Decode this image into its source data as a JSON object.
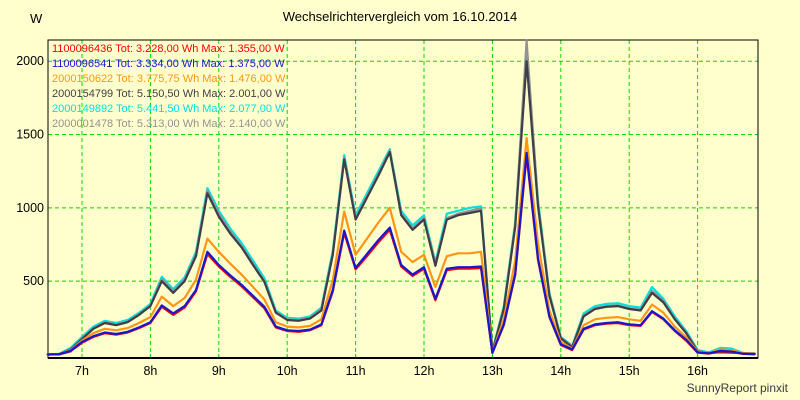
{
  "page": {
    "background": "#FFFFCE",
    "footer": "SunnyReport pinxit"
  },
  "chart_data": {
    "type": "line",
    "title": "Wechselrichtervergleich vom 16.10.2014",
    "ylabel": "W",
    "xlabel": "",
    "grid": true,
    "grid_color": "#00DB00",
    "frame_color": "#000000",
    "legend_position": "top-left",
    "ylim": [
      0,
      2185
    ],
    "y_ticks": [
      500,
      1000,
      1500,
      2000
    ],
    "y_tick_labels": [
      "500",
      "1000",
      "1500",
      "2000"
    ],
    "x_tick_hours": [
      7,
      8,
      9,
      10,
      11,
      12,
      13,
      14,
      15,
      16
    ],
    "x_tick_labels": [
      "7h",
      "8h",
      "9h",
      "10h",
      "11h",
      "12h",
      "13h",
      "14h",
      "15h",
      "16h"
    ],
    "x": [
      "06:30",
      "06:40",
      "06:50",
      "07:00",
      "07:10",
      "07:20",
      "07:30",
      "07:40",
      "07:50",
      "08:00",
      "08:10",
      "08:20",
      "08:30",
      "08:40",
      "08:50",
      "09:00",
      "09:10",
      "09:20",
      "09:30",
      "09:40",
      "09:50",
      "10:00",
      "10:10",
      "10:20",
      "10:30",
      "10:40",
      "10:50",
      "11:00",
      "11:10",
      "11:20",
      "11:30",
      "11:40",
      "11:50",
      "12:00",
      "12:10",
      "12:20",
      "12:30",
      "12:40",
      "12:50",
      "13:00",
      "13:10",
      "13:20",
      "13:30",
      "13:40",
      "13:50",
      "14:00",
      "14:10",
      "14:20",
      "14:30",
      "14:40",
      "14:50",
      "15:00",
      "15:10",
      "15:20",
      "15:30",
      "15:40",
      "15:50",
      "16:00",
      "16:10",
      "16:20",
      "16:30",
      "16:40",
      "16:50"
    ],
    "series": [
      {
        "name": "1100096436",
        "label": "1100096436 Tot: 3.228,00 Wh Max: 1.355,00 W",
        "total_wh": "3.228,00",
        "max_w": "1.355,00",
        "color": "#FF0000",
        "values": [
          0,
          2,
          22,
          80,
          120,
          145,
          135,
          150,
          180,
          215,
          325,
          270,
          320,
          430,
          685,
          600,
          530,
          465,
          390,
          315,
          185,
          160,
          155,
          165,
          200,
          430,
          830,
          580,
          670,
          765,
          850,
          600,
          535,
          585,
          370,
          575,
          585,
          585,
          590,
          10,
          200,
          540,
          1355,
          645,
          255,
          65,
          30,
          170,
          200,
          210,
          215,
          200,
          195,
          290,
          240,
          160,
          95,
          12,
          6,
          22,
          18,
          4,
          2
        ]
      },
      {
        "name": "1100096541",
        "label": "1100096541 Tot: 3.334,00 Wh Max: 1.375,00 W",
        "total_wh": "3.334,00",
        "max_w": "1.375,00",
        "color": "#1717CD",
        "values": [
          0,
          2,
          25,
          85,
          125,
          150,
          140,
          155,
          185,
          220,
          335,
          280,
          330,
          440,
          700,
          610,
          540,
          475,
          400,
          325,
          190,
          165,
          160,
          170,
          205,
          440,
          845,
          590,
          685,
          780,
          865,
          610,
          545,
          595,
          380,
          585,
          595,
          595,
          600,
          12,
          205,
          550,
          1375,
          655,
          260,
          70,
          35,
          175,
          205,
          215,
          220,
          205,
          200,
          295,
          245,
          165,
          100,
          15,
          8,
          25,
          20,
          5,
          2
        ]
      },
      {
        "name": "2000150622",
        "label": "2000150622 Tot: 3.775,75 Wh Max: 1.476,00 W",
        "total_wh": "3.775,75",
        "max_w": "1.476,00",
        "color": "#FF9415",
        "values": [
          0,
          3,
          30,
          95,
          145,
          175,
          165,
          180,
          215,
          255,
          395,
          330,
          385,
          510,
          790,
          700,
          620,
          545,
          460,
          375,
          220,
          190,
          185,
          195,
          240,
          510,
          975,
          680,
          790,
          900,
          1000,
          700,
          630,
          680,
          460,
          670,
          690,
          690,
          700,
          15,
          240,
          640,
          1476,
          760,
          300,
          85,
          40,
          200,
          240,
          250,
          255,
          240,
          230,
          340,
          285,
          190,
          115,
          20,
          10,
          35,
          30,
          8,
          3
        ]
      },
      {
        "name": "2000154799",
        "label": "2000154799 Tot: 5.150,50 Wh Max: 2.001,00 W",
        "total_wh": "5.150,50",
        "max_w": "2.001,00",
        "color": "#3E3E46",
        "values": [
          0,
          3,
          35,
          105,
          175,
          215,
          200,
          220,
          270,
          330,
          500,
          420,
          500,
          670,
          1100,
          940,
          825,
          730,
          610,
          495,
          285,
          235,
          230,
          245,
          300,
          680,
          1330,
          920,
          1070,
          1220,
          1380,
          950,
          850,
          920,
          605,
          920,
          950,
          965,
          980,
          18,
          310,
          870,
          2001,
          1010,
          400,
          110,
          50,
          260,
          310,
          325,
          330,
          310,
          300,
          420,
          355,
          240,
          145,
          20,
          10,
          15,
          12,
          8,
          5
        ]
      },
      {
        "name": "2000149892",
        "label": "2000149892 Tot: 5.441,50 Wh Max: 2.077,00 W",
        "total_wh": "5.441,50",
        "max_w": "2.077,00",
        "color": "#00E0E0",
        "values": [
          0,
          5,
          45,
          120,
          190,
          230,
          215,
          235,
          285,
          345,
          530,
          445,
          525,
          700,
          1135,
          980,
          860,
          760,
          640,
          520,
          300,
          250,
          245,
          260,
          320,
          710,
          1360,
          950,
          1100,
          1250,
          1400,
          980,
          880,
          950,
          630,
          960,
          980,
          1000,
          1010,
          25,
          330,
          900,
          2077,
          1050,
          420,
          120,
          60,
          280,
          330,
          345,
          350,
          330,
          320,
          460,
          380,
          260,
          160,
          30,
          15,
          45,
          40,
          10,
          5
        ]
      },
      {
        "name": "2000001478",
        "label": "2000001478 Tot: 5.313,00 Wh Max: 2.140,00 W",
        "total_wh": "5.313,00",
        "max_w": "2.140,00",
        "color": "#929292",
        "values": [
          0,
          0,
          20,
          110,
          180,
          220,
          205,
          225,
          275,
          335,
          515,
          430,
          510,
          685,
          1115,
          960,
          840,
          740,
          620,
          500,
          290,
          240,
          235,
          250,
          310,
          690,
          1340,
          930,
          1080,
          1230,
          1390,
          960,
          860,
          930,
          615,
          930,
          960,
          980,
          995,
          20,
          315,
          880,
          2140,
          1030,
          410,
          115,
          55,
          265,
          315,
          330,
          335,
          315,
          305,
          435,
          365,
          245,
          150,
          25,
          12,
          20,
          15,
          10,
          8
        ]
      }
    ]
  }
}
